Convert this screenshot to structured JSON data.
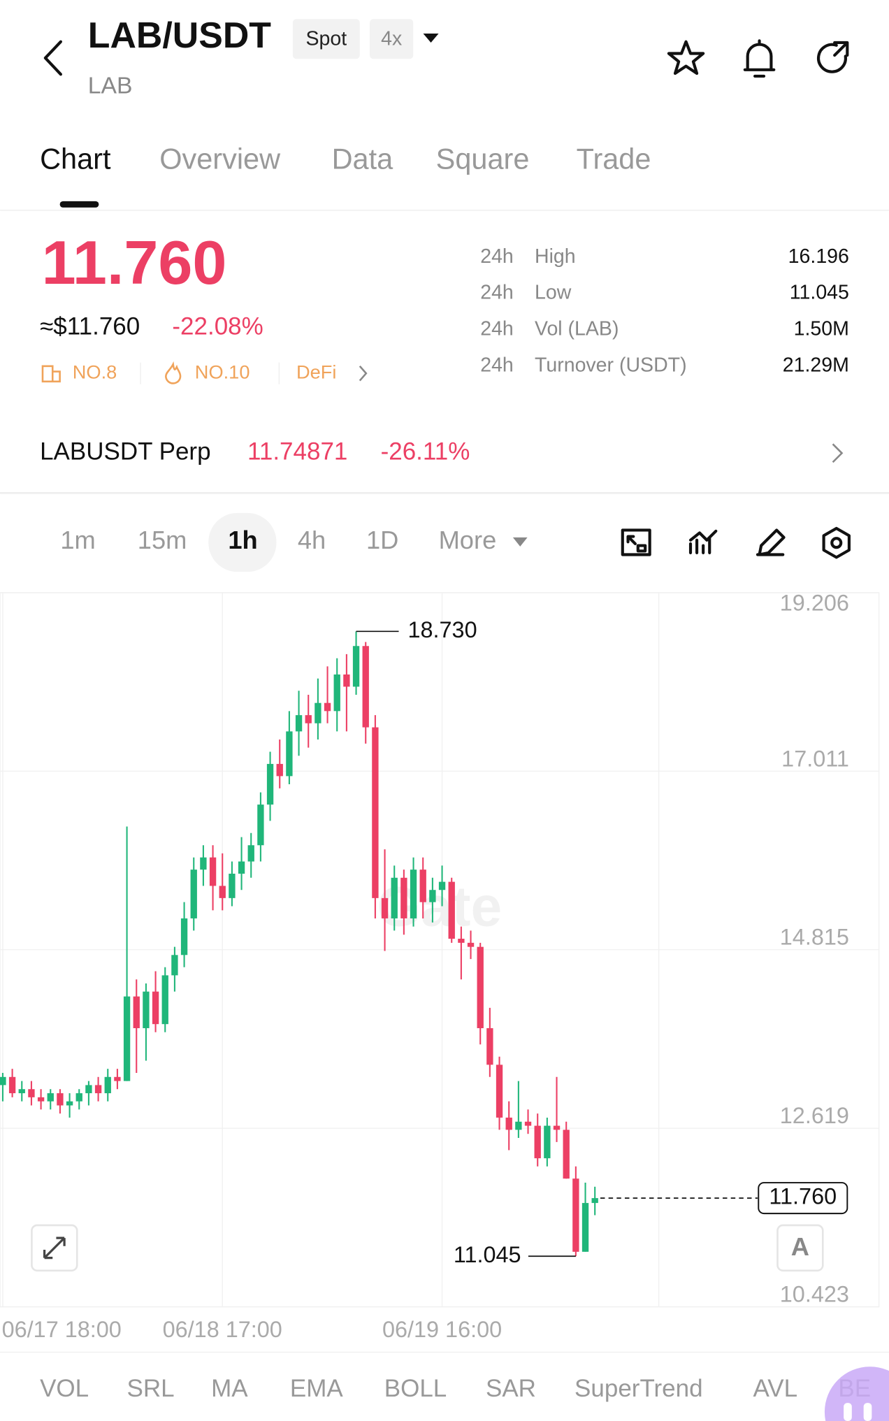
{
  "header": {
    "title": "LAB/USDT",
    "badge_market": "Spot",
    "badge_leverage": "4x",
    "subtitle": "LAB"
  },
  "tabs": [
    "Chart",
    "Overview",
    "Data",
    "Square",
    "Trade"
  ],
  "price": {
    "last": "11.760",
    "usd": "≈$11.760",
    "change": "-22.08%",
    "tags": [
      "NO.8",
      "NO.10",
      "DeFi"
    ]
  },
  "stats": [
    {
      "period": "24h",
      "label": "High",
      "value": "16.196"
    },
    {
      "period": "24h",
      "label": "Low",
      "value": "11.045"
    },
    {
      "period": "24h",
      "label": "Vol (LAB)",
      "value": "1.50M"
    },
    {
      "period": "24h",
      "label": "Turnover (USDT)",
      "value": "21.29M"
    }
  ],
  "perp": {
    "name": "LABUSDT Perp",
    "price": "11.74871",
    "change": "-26.11%"
  },
  "intervals": [
    "1m",
    "15m",
    "1h",
    "4h",
    "1D",
    "More"
  ],
  "chart_data": {
    "type": "candlestick",
    "watermark": "Gate",
    "auto_button": "A",
    "up_color": "#20b67a",
    "down_color": "#ec3f64",
    "categories": [
      "06/17 18:00",
      null,
      null,
      null,
      null,
      null,
      null,
      null,
      null,
      null,
      null,
      null,
      null,
      null,
      null,
      null,
      null,
      null,
      null,
      null,
      null,
      null,
      null,
      "06/18 17:00",
      null,
      null,
      null,
      null,
      null,
      null,
      null,
      null,
      null,
      null,
      null,
      null,
      null,
      null,
      null,
      null,
      null,
      null,
      null,
      null,
      null,
      null,
      "06/19 16:00",
      null,
      null,
      null,
      null,
      null,
      null,
      null,
      null,
      null,
      null,
      null,
      null,
      null,
      null,
      null,
      null
    ],
    "open": [
      13.15,
      13.25,
      13.05,
      13.1,
      13.0,
      12.95,
      13.05,
      12.9,
      12.95,
      13.05,
      13.15,
      13.05,
      13.25,
      13.2,
      14.24,
      13.85,
      14.3,
      13.9,
      14.5,
      14.75,
      15.2,
      15.8,
      15.95,
      15.6,
      15.45,
      15.75,
      15.9,
      16.1,
      16.6,
      17.1,
      16.95,
      17.5,
      17.7,
      17.6,
      17.85,
      17.75,
      18.2,
      18.05,
      18.55,
      17.55,
      15.45,
      15.2,
      15.7,
      15.2,
      15.8,
      15.4,
      15.55,
      15.65,
      14.95,
      14.9,
      14.85,
      13.85,
      13.4,
      12.75,
      12.6,
      12.7,
      12.65,
      12.25,
      12.65,
      12.6,
      12.0,
      11.1,
      11.7
    ],
    "high": [
      13.3,
      13.35,
      13.2,
      13.2,
      13.1,
      13.1,
      13.1,
      13.05,
      13.1,
      13.2,
      13.25,
      13.35,
      13.35,
      16.33,
      14.45,
      14.4,
      14.55,
      14.6,
      14.85,
      15.4,
      15.95,
      16.1,
      16.1,
      16.0,
      15.9,
      16.2,
      16.25,
      16.75,
      17.25,
      17.4,
      17.75,
      18.0,
      17.95,
      18.15,
      18.3,
      18.4,
      18.45,
      18.73,
      18.6,
      17.7,
      16.05,
      15.85,
      15.8,
      15.95,
      15.95,
      15.7,
      15.85,
      15.7,
      15.1,
      15.05,
      14.9,
      14.1,
      13.5,
      12.95,
      13.2,
      12.85,
      12.8,
      12.75,
      13.25,
      12.7,
      12.15,
      11.95,
      11.9
    ],
    "low": [
      12.95,
      13.0,
      12.95,
      12.9,
      12.85,
      12.85,
      12.8,
      12.75,
      12.85,
      12.9,
      12.95,
      12.95,
      13.1,
      13.2,
      13.3,
      13.45,
      13.8,
      13.8,
      14.3,
      14.6,
      15.05,
      15.6,
      15.3,
      15.3,
      15.35,
      15.55,
      15.7,
      15.9,
      16.4,
      16.8,
      16.85,
      17.2,
      17.3,
      17.4,
      17.6,
      17.5,
      17.5,
      17.95,
      17.35,
      15.2,
      14.8,
      15.05,
      15.0,
      15.1,
      15.2,
      15.15,
      15.35,
      14.9,
      14.45,
      14.7,
      13.65,
      13.25,
      12.6,
      12.35,
      12.5,
      12.55,
      12.15,
      12.15,
      12.45,
      12.0,
      11.045,
      11.1,
      11.55
    ],
    "close": [
      13.25,
      13.05,
      13.1,
      13.0,
      12.95,
      13.05,
      12.9,
      12.95,
      13.05,
      13.15,
      13.05,
      13.25,
      13.2,
      14.24,
      13.85,
      14.3,
      13.9,
      14.5,
      14.75,
      15.2,
      15.8,
      15.95,
      15.6,
      15.45,
      15.75,
      15.9,
      16.1,
      16.6,
      17.1,
      16.95,
      17.5,
      17.7,
      17.6,
      17.85,
      17.75,
      18.2,
      18.05,
      18.55,
      17.55,
      15.45,
      15.2,
      15.7,
      15.2,
      15.8,
      15.4,
      15.55,
      15.65,
      14.95,
      14.9,
      14.85,
      13.85,
      13.4,
      12.75,
      12.6,
      12.7,
      12.65,
      12.25,
      12.65,
      12.6,
      12.0,
      11.1,
      11.7,
      11.76
    ],
    "high_label": {
      "value": 18.73,
      "label": "18.730"
    },
    "low_label": 11.045,
    "last_price": {
      "value": 11.76,
      "label": "11.760"
    },
    "ylim": [
      10.423,
      19.206
    ],
    "yticks": [
      19.206,
      17.011,
      14.815,
      12.619,
      10.423
    ],
    "grid": true
  },
  "indicators": [
    "VOL",
    "SRL",
    "MA",
    "EMA",
    "BOLL",
    "SAR",
    "SuperTrend",
    "AVL",
    "BE"
  ]
}
